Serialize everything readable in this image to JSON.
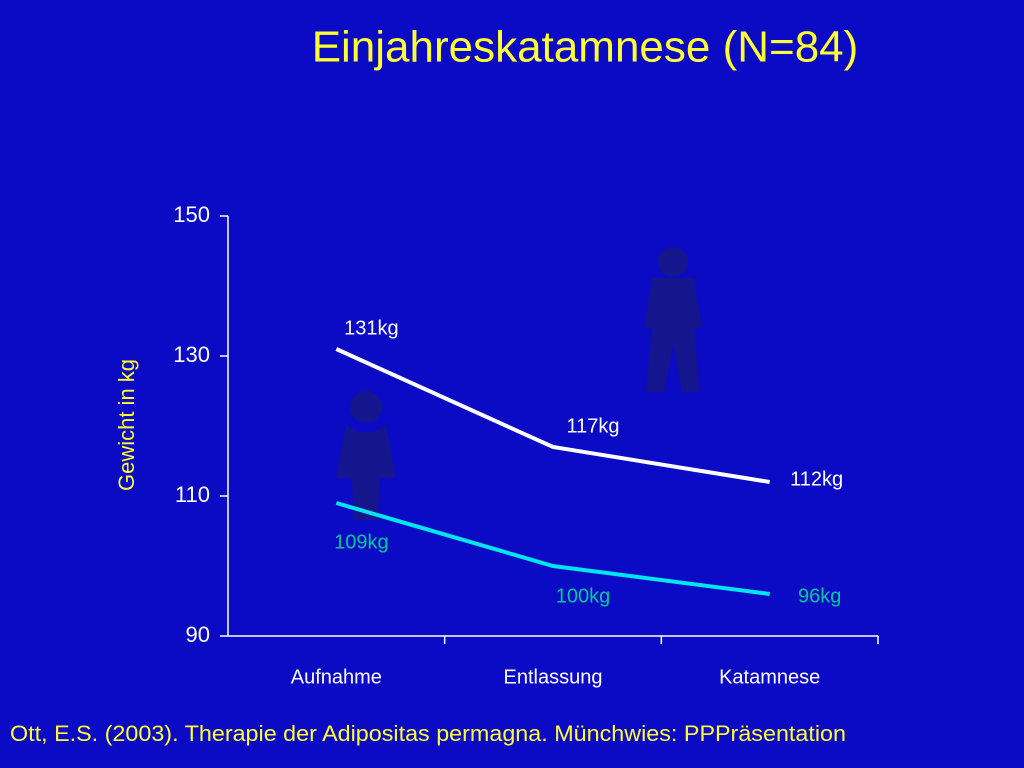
{
  "chart_data": {
    "type": "line",
    "title": "Einjahreskatamnese (N=84)",
    "y_label": "Gewicht in kg",
    "source": "Ott, E.S. (2003). Therapie der Adipositas permagna. Münchwies: PPPräsentation",
    "categories": [
      "Aufnahme",
      "Entlassung",
      "Katamnese"
    ],
    "series": [
      {
        "color": "#ffffff",
        "label_color": "#ffffff",
        "values": [
          131,
          117,
          112
        ],
        "value_labels": [
          "131kg",
          "117kg",
          "112kg"
        ]
      },
      {
        "color": "#00e5f0",
        "label_color": "#00c89a",
        "values": [
          109,
          100,
          96
        ],
        "value_labels": [
          "109kg",
          "100kg",
          "96kg"
        ]
      }
    ],
    "ylim": [
      90,
      150
    ],
    "yticks": [
      90,
      110,
      130,
      150
    ],
    "title_color": "#ffff33",
    "label_color": "#ffff33"
  }
}
